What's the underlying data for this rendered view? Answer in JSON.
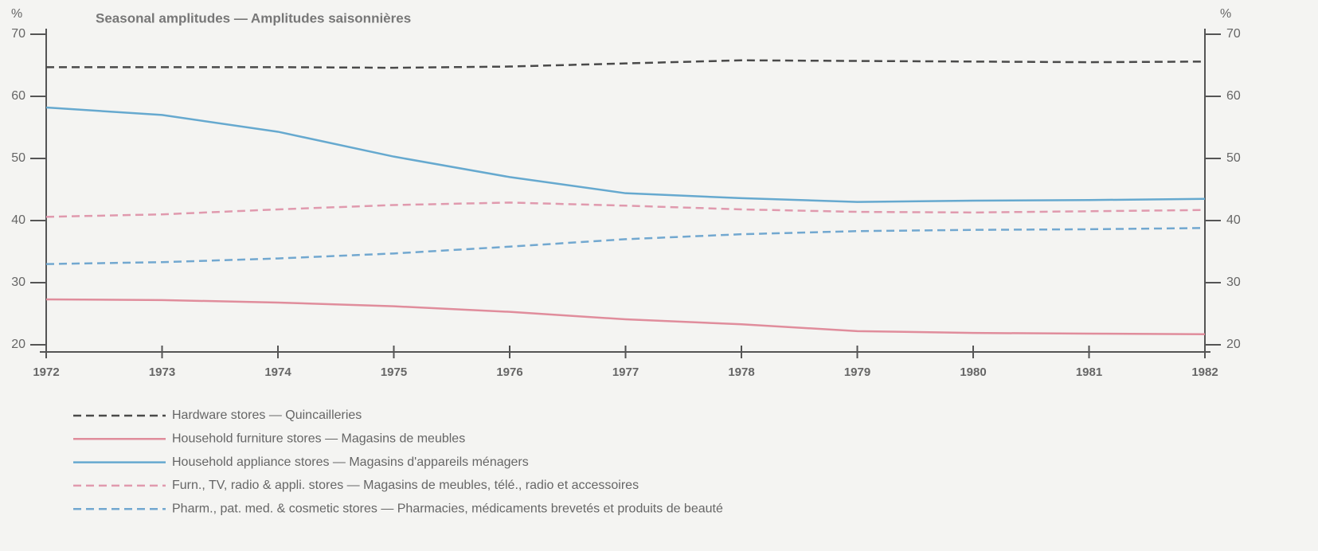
{
  "chart_data": {
    "type": "line",
    "title": "Seasonal amplitudes — Amplitudes saisonnières",
    "ylabel": "%",
    "y2label": "%",
    "x": [
      1972,
      1973,
      1974,
      1975,
      1976,
      1977,
      1978,
      1979,
      1980,
      1981,
      1982
    ],
    "xlim": [
      1972,
      1982
    ],
    "xticks": [
      1972,
      1973,
      1974,
      1975,
      1976,
      1977,
      1978,
      1979,
      1980,
      1981,
      1982
    ],
    "ylim": [
      20,
      70
    ],
    "yticks": [
      20,
      30,
      40,
      50,
      60,
      70
    ],
    "y2lim": [
      20,
      70
    ],
    "y2ticks": [
      20,
      30,
      40,
      50,
      60,
      70
    ],
    "series": [
      {
        "name": "Hardware stores — Quincailleries",
        "color": "#4a4a4a",
        "style": "dashed",
        "values": [
          64.7,
          64.7,
          64.7,
          64.6,
          64.8,
          65.3,
          65.8,
          65.7,
          65.6,
          65.5,
          65.6
        ]
      },
      {
        "name": "Household furniture stores — Magasins de meubles",
        "color": "#e08d9c",
        "style": "solid",
        "values": [
          27.3,
          27.2,
          26.8,
          26.2,
          25.3,
          24.1,
          23.3,
          22.2,
          21.9,
          21.8,
          21.7
        ]
      },
      {
        "name": "Household appliance stores — Magasins d'appareils ménagers",
        "color": "#66a9cf",
        "style": "solid",
        "values": [
          58.2,
          57.0,
          54.3,
          50.3,
          47.0,
          44.4,
          43.6,
          43.0,
          43.2,
          43.3,
          43.5
        ]
      },
      {
        "name": "Furn., TV, radio & appli. stores — Magasins de meubles, télé., radio et accessoires",
        "color": "#e09aae",
        "style": "dashed",
        "values": [
          40.6,
          41.0,
          41.8,
          42.5,
          42.9,
          42.4,
          41.8,
          41.4,
          41.3,
          41.5,
          41.7
        ]
      },
      {
        "name": "Pharm., pat. med. & cosmetic stores — Pharmacies, médicaments brevetés et produits de beauté",
        "color": "#72a8d0",
        "style": "dashed",
        "values": [
          33.0,
          33.3,
          33.9,
          34.7,
          35.8,
          37.0,
          37.8,
          38.3,
          38.5,
          38.6,
          38.8
        ]
      }
    ]
  }
}
